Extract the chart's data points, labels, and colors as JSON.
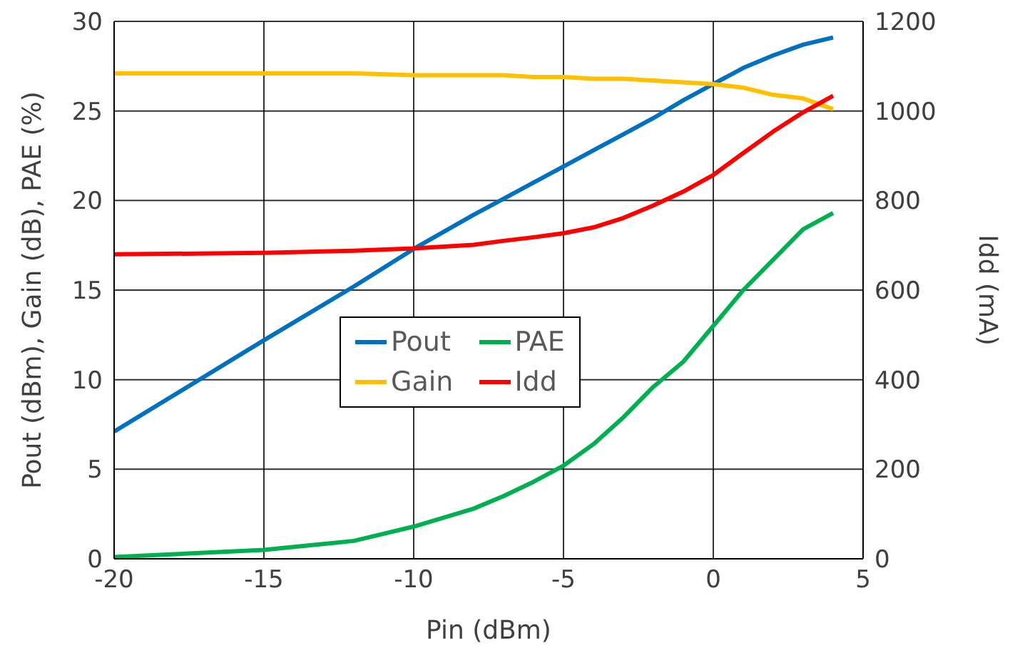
{
  "chart_data": {
    "type": "line",
    "xlabel": "Pin (dBm)",
    "ylabel": "Pout (dBm), Gain (dB), PAE (%)",
    "y2label": "Idd (mA)",
    "x": [
      -20,
      -15,
      -12,
      -10,
      -8,
      -7,
      -6,
      -5,
      -4,
      -3,
      -2,
      -1,
      0,
      1,
      2,
      3,
      4
    ],
    "series": [
      {
        "name": "Pout",
        "color": "#0070c0",
        "values": [
          7.1,
          12.2,
          15.2,
          17.3,
          19.2,
          20.1,
          21.0,
          21.9,
          22.8,
          23.7,
          24.6,
          25.6,
          26.5,
          27.4,
          28.1,
          28.7,
          29.1
        ]
      },
      {
        "name": "PAE",
        "color": "#00b050",
        "values": [
          0.1,
          0.5,
          1.0,
          1.8,
          2.8,
          3.5,
          4.3,
          5.2,
          6.4,
          7.9,
          9.6,
          11.0,
          13.0,
          15.0,
          16.7,
          18.4,
          19.3
        ]
      },
      {
        "name": "Gain",
        "color": "#ffc000",
        "values": [
          27.1,
          27.1,
          27.1,
          27.0,
          27.0,
          27.0,
          26.9,
          26.9,
          26.8,
          26.8,
          26.7,
          26.6,
          26.5,
          26.3,
          25.9,
          25.7,
          25.1
        ]
      },
      {
        "name": "Idd",
        "color": "#ff0000",
        "axis": "y2",
        "values": [
          680,
          683,
          688,
          693,
          701,
          710,
          718,
          727,
          740,
          761,
          789,
          820,
          857,
          906,
          954,
          997,
          1034
        ]
      }
    ],
    "xlim": [
      -20,
      5
    ],
    "xticks": [
      -20,
      -15,
      -10,
      -5,
      0,
      5
    ],
    "ylim": [
      0,
      30
    ],
    "yticks": [
      0,
      5,
      10,
      15,
      20,
      25,
      30
    ],
    "y2lim": [
      0,
      1200
    ],
    "y2ticks": [
      0,
      200,
      400,
      600,
      800,
      1000,
      1200
    ],
    "grid": true,
    "legend": "center",
    "marker": "none",
    "line_style": "solid"
  }
}
